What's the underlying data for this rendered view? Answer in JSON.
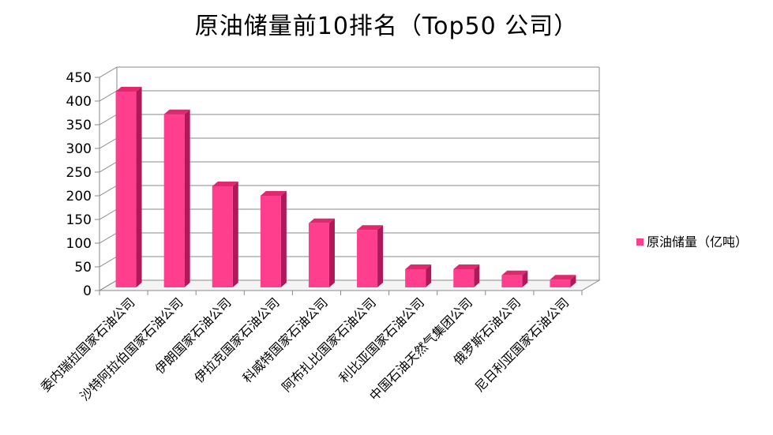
{
  "chart_data": {
    "type": "bar",
    "title": "原油储量前10排名（Top50 公司）",
    "categories": [
      "委内瑞拉国家石油公司",
      "沙特阿拉伯国家石油公司",
      "伊朗国家石油公司",
      "伊拉克国家石油公司",
      "科威特国家石油公司",
      "阿布扎比国家石油公司",
      "利比亚国家石油公司",
      "中国石油天然气集团公司",
      "俄罗斯石油公司",
      "尼日利亚国家石油公司"
    ],
    "series": [
      {
        "name": "原油储量（亿吨）",
        "values": [
          420,
          372,
          220,
          200,
          142,
          128,
          45,
          45,
          32,
          23
        ]
      }
    ],
    "ylim": [
      0,
      450
    ],
    "yticks": [
      0,
      50,
      100,
      150,
      200,
      250,
      300,
      350,
      400,
      450
    ],
    "grid": true,
    "legend": "right",
    "colors": {
      "bar_front": "#ff3f8e",
      "bar_side": "#b0185a",
      "bar_top": "#e0286f"
    }
  }
}
